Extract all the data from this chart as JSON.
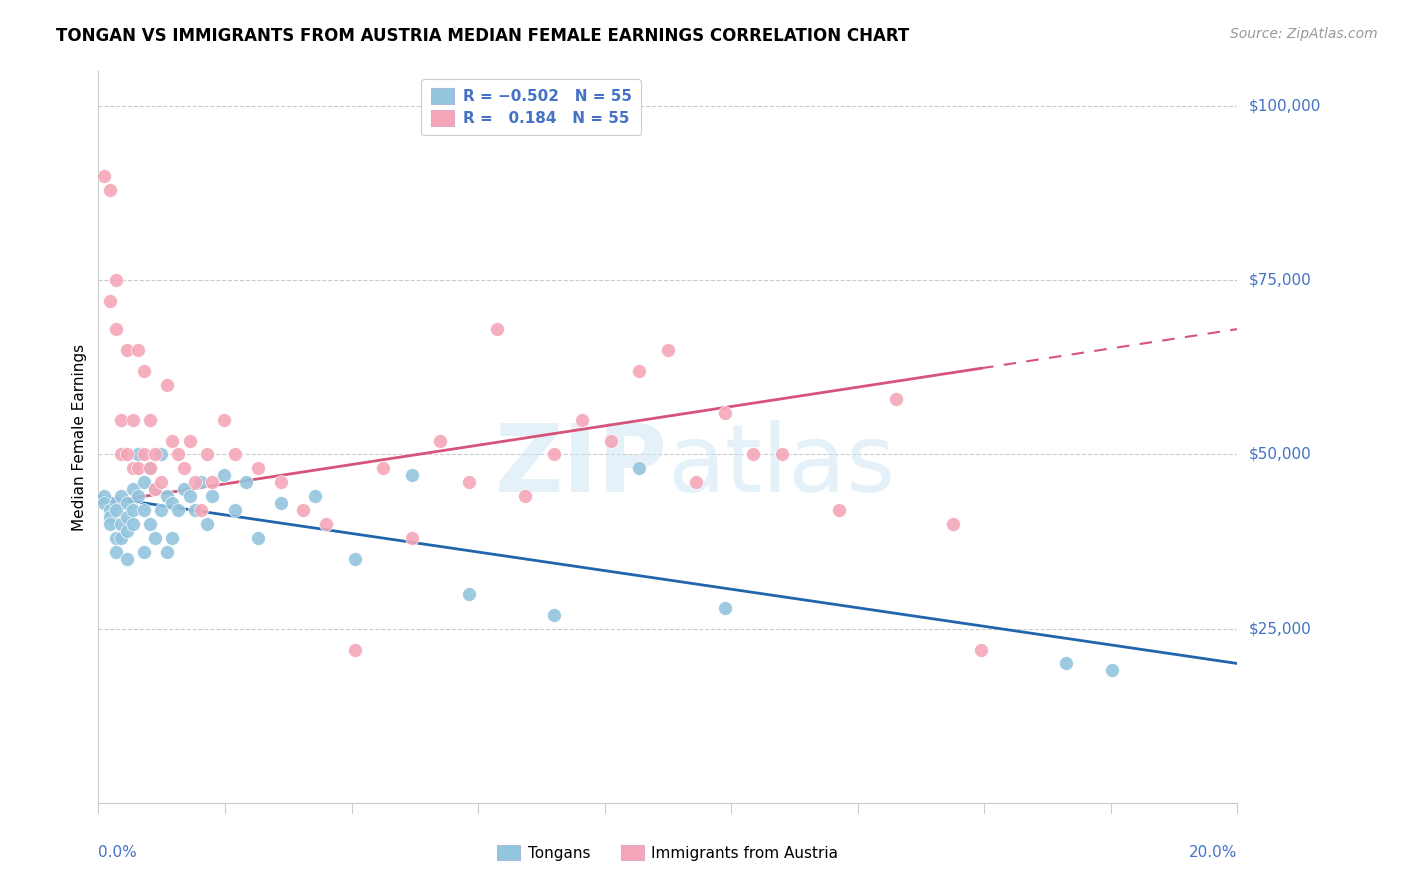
{
  "title": "TONGAN VS IMMIGRANTS FROM AUSTRIA MEDIAN FEMALE EARNINGS CORRELATION CHART",
  "source": "Source: ZipAtlas.com",
  "ylabel": "Median Female Earnings",
  "xmin": 0.0,
  "xmax": 0.2,
  "ymin": 0,
  "ymax": 105000,
  "yticks": [
    0,
    25000,
    50000,
    75000,
    100000
  ],
  "ytick_labels": [
    "",
    "$25,000",
    "$50,000",
    "$75,000",
    "$100,000"
  ],
  "blue_color": "#92c5de",
  "pink_color": "#f4a6b8",
  "blue_line_color": "#2166ac",
  "pink_line_color": "#d6547a",
  "text_color": "#4472c4",
  "grid_color": "#cccccc",
  "tongans_x": [
    0.001,
    0.001,
    0.002,
    0.002,
    0.002,
    0.003,
    0.003,
    0.003,
    0.003,
    0.004,
    0.004,
    0.004,
    0.005,
    0.005,
    0.005,
    0.005,
    0.006,
    0.006,
    0.006,
    0.007,
    0.007,
    0.008,
    0.008,
    0.008,
    0.009,
    0.009,
    0.01,
    0.01,
    0.011,
    0.011,
    0.012,
    0.012,
    0.013,
    0.013,
    0.014,
    0.015,
    0.016,
    0.017,
    0.018,
    0.019,
    0.02,
    0.022,
    0.024,
    0.026,
    0.028,
    0.032,
    0.038,
    0.045,
    0.055,
    0.065,
    0.08,
    0.095,
    0.11,
    0.17,
    0.178
  ],
  "tongans_y": [
    44000,
    43000,
    42000,
    41000,
    40000,
    43000,
    42000,
    38000,
    36000,
    44000,
    40000,
    38000,
    43000,
    41000,
    39000,
    35000,
    45000,
    42000,
    40000,
    50000,
    44000,
    46000,
    42000,
    36000,
    48000,
    40000,
    45000,
    38000,
    50000,
    42000,
    44000,
    36000,
    43000,
    38000,
    42000,
    45000,
    44000,
    42000,
    46000,
    40000,
    44000,
    47000,
    42000,
    46000,
    38000,
    43000,
    44000,
    35000,
    47000,
    30000,
    27000,
    48000,
    28000,
    20000,
    19000
  ],
  "austria_x": [
    0.001,
    0.002,
    0.002,
    0.003,
    0.003,
    0.004,
    0.004,
    0.005,
    0.005,
    0.006,
    0.006,
    0.007,
    0.007,
    0.008,
    0.008,
    0.009,
    0.009,
    0.01,
    0.01,
    0.011,
    0.012,
    0.013,
    0.014,
    0.015,
    0.016,
    0.017,
    0.018,
    0.019,
    0.02,
    0.022,
    0.024,
    0.028,
    0.032,
    0.036,
    0.04,
    0.045,
    0.05,
    0.055,
    0.06,
    0.065,
    0.07,
    0.075,
    0.08,
    0.085,
    0.09,
    0.095,
    0.1,
    0.105,
    0.11,
    0.115,
    0.12,
    0.13,
    0.14,
    0.15,
    0.155
  ],
  "austria_y": [
    90000,
    88000,
    72000,
    75000,
    68000,
    55000,
    50000,
    65000,
    50000,
    55000,
    48000,
    65000,
    48000,
    62000,
    50000,
    48000,
    55000,
    50000,
    45000,
    46000,
    60000,
    52000,
    50000,
    48000,
    52000,
    46000,
    42000,
    50000,
    46000,
    55000,
    50000,
    48000,
    46000,
    42000,
    40000,
    22000,
    48000,
    38000,
    52000,
    46000,
    68000,
    44000,
    50000,
    55000,
    52000,
    62000,
    65000,
    46000,
    56000,
    50000,
    50000,
    42000,
    58000,
    40000,
    22000
  ]
}
